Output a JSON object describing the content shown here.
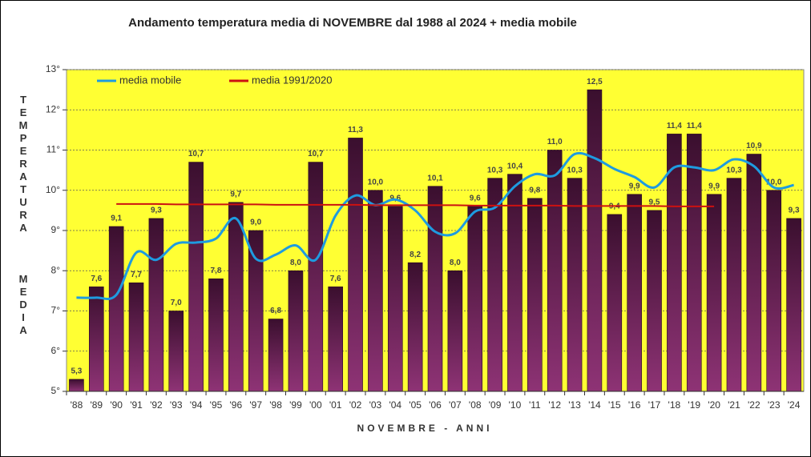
{
  "chart_data": {
    "type": "bar",
    "title": "Andamento temperatura media di NOVEMBRE dal 1988 al 2024 + media mobile",
    "y_label_top": "TEMPERATURA",
    "y_label_bottom": "MEDIA",
    "x_label": "NOVEMBRE - ANNI",
    "categories": [
      "'88",
      "'89",
      "'90",
      "'91",
      "'92",
      "'93",
      "'94",
      "'95",
      "'96",
      "'97",
      "'98",
      "'99",
      "'00",
      "'01",
      "'02",
      "'03",
      "'04",
      "'05",
      "'06",
      "'07",
      "'08",
      "'09",
      "'10",
      "'11",
      "'12",
      "'13",
      "'14",
      "'15",
      "'16",
      "'17",
      "'18",
      "'19",
      "'20",
      "'21",
      "'22",
      "'23",
      "'24"
    ],
    "values": [
      5.3,
      7.6,
      9.1,
      7.7,
      9.3,
      7.0,
      10.7,
      7.8,
      9.7,
      9.0,
      6.8,
      8.0,
      10.7,
      7.6,
      11.3,
      10.0,
      9.6,
      8.2,
      10.1,
      8.0,
      9.6,
      10.3,
      10.4,
      9.8,
      11.0,
      10.3,
      12.5,
      9.4,
      9.9,
      9.5,
      11.4,
      11.4,
      9.9,
      10.3,
      10.9,
      10.0,
      9.3
    ],
    "value_labels": [
      "5,3",
      "7,6",
      "9,1",
      "7,7",
      "9,3",
      "7,0",
      "10,7",
      "7,8",
      "9,7",
      "9,0",
      "6,8",
      "8,0",
      "10,7",
      "7,6",
      "11,3",
      "10,0",
      "9,6",
      "8,2",
      "10,1",
      "8,0",
      "9,6",
      "10,3",
      "10,4",
      "9,8",
      "11,0",
      "10,3",
      "12,5",
      "9,4",
      "9,9",
      "9,5",
      "11,4",
      "11,4",
      "9,9",
      "10,3",
      "10,9",
      "10,0",
      "9,3"
    ],
    "series": [
      {
        "name": "media mobile",
        "color": "#1e9be0",
        "type": "line",
        "smooth": true,
        "values": [
          7.33,
          7.33,
          7.4,
          8.45,
          8.27,
          8.67,
          8.7,
          8.8,
          9.3,
          8.3,
          8.4,
          8.63,
          8.27,
          9.37,
          9.87,
          9.63,
          9.77,
          9.5,
          8.97,
          8.93,
          9.47,
          9.57,
          10.1,
          10.4,
          10.37,
          10.9,
          10.8,
          10.53,
          10.33,
          10.07,
          10.57,
          10.57,
          10.5,
          10.77,
          10.6,
          10.07,
          10.13
        ]
      },
      {
        "name": "media 1991/2020",
        "color": "#cc1111",
        "type": "line",
        "smooth": false,
        "values": [
          null,
          null,
          9.66,
          9.66,
          9.66,
          9.65,
          9.65,
          9.65,
          9.65,
          9.65,
          9.64,
          9.64,
          9.64,
          9.64,
          9.64,
          9.63,
          9.63,
          9.63,
          9.63,
          9.63,
          9.62,
          9.62,
          9.62,
          9.62,
          9.62,
          9.61,
          9.61,
          9.61,
          9.61,
          9.61,
          9.6,
          9.6,
          9.6,
          null,
          null,
          null,
          null
        ]
      }
    ],
    "ylim": [
      5,
      13
    ],
    "yticks": [
      {
        "value": 5,
        "label": "5°"
      },
      {
        "value": 6,
        "label": "6°"
      },
      {
        "value": 7,
        "label": "7°"
      },
      {
        "value": 8,
        "label": "8°"
      },
      {
        "value": 9,
        "label": "9°"
      },
      {
        "value": 10,
        "label": "10°"
      },
      {
        "value": 11,
        "label": "11°"
      },
      {
        "value": 12,
        "label": "12°"
      },
      {
        "value": 13,
        "label": "13°"
      }
    ],
    "grid": true,
    "legend": "top-left",
    "plot_background": "#ffff33",
    "bar_color_top": "#3a0f2e",
    "bar_color_bottom": "#8e3375"
  }
}
